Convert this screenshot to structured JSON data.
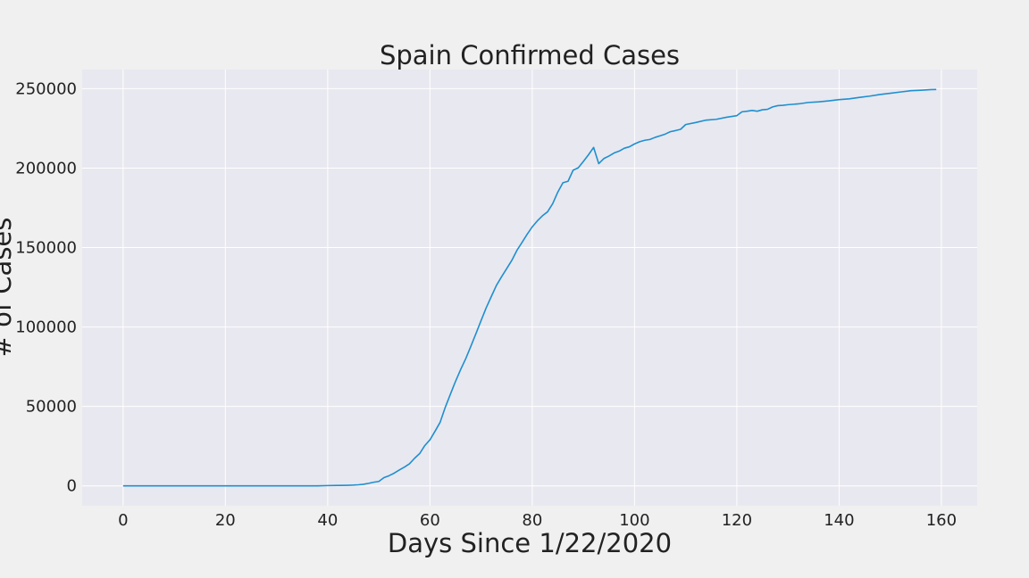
{
  "chart_data": {
    "type": "line",
    "title": "Spain Confirmed Cases",
    "xlabel": "Days Since 1/22/2020",
    "ylabel": "# of Cases",
    "xlim": [
      -8,
      167
    ],
    "ylim": [
      -12500,
      262000
    ],
    "x_ticks": [
      0,
      20,
      40,
      60,
      80,
      100,
      120,
      140,
      160
    ],
    "y_ticks": [
      0,
      50000,
      100000,
      150000,
      200000,
      250000
    ],
    "grid": true,
    "line_color": "#1f8fcf",
    "background": "#e8e8f0",
    "series": [
      {
        "x": [
          0,
          10,
          20,
          30,
          38,
          40,
          42,
          44,
          45,
          46,
          47,
          48,
          49,
          50,
          51,
          52,
          53,
          54,
          55,
          56,
          57,
          58,
          59,
          60,
          61,
          62,
          63,
          64,
          65,
          66,
          67,
          68,
          69,
          70,
          71,
          72,
          73,
          74,
          75,
          76,
          77,
          78,
          79,
          80,
          81,
          82,
          83,
          84,
          85,
          86,
          87,
          88,
          89,
          90,
          91,
          92,
          93,
          94,
          95,
          96,
          97,
          98,
          99,
          100,
          101,
          102,
          103,
          104,
          105,
          106,
          107,
          108,
          109,
          110,
          112,
          114,
          116,
          118,
          120,
          121,
          122,
          123,
          124,
          125,
          126,
          127,
          128,
          129,
          130,
          132,
          134,
          136,
          138,
          140,
          142,
          144,
          146,
          148,
          150,
          152,
          154,
          156,
          158,
          159
        ],
        "y": [
          0,
          0,
          0,
          0,
          0,
          200,
          300,
          400,
          500,
          700,
          1000,
          1600,
          2300,
          2800,
          5200,
          6400,
          8000,
          10000,
          11800,
          13900,
          17400,
          20400,
          25400,
          29000,
          34400,
          40100,
          49500,
          57700,
          65800,
          73200,
          80100,
          87900,
          95900,
          104100,
          112100,
          119200,
          126200,
          131600,
          136700,
          141900,
          148200,
          153200,
          158300,
          163000,
          166800,
          170000,
          172500,
          177600,
          184900,
          190800,
          191700,
          198700,
          200200,
          204200,
          208400,
          213000,
          202800,
          206000,
          207600,
          209500,
          210700,
          212500,
          213400,
          215200,
          216600,
          217500,
          218000,
          219300,
          220300,
          221400,
          222900,
          223600,
          224400,
          227400,
          228700,
          230200,
          230700,
          232000,
          233000,
          235400,
          235800,
          236300,
          235800,
          236700,
          237000,
          238500,
          239300,
          239500,
          239900,
          240400,
          241300,
          241700,
          242300,
          243100,
          243600,
          244500,
          245300,
          246300,
          247100,
          247900,
          248700,
          249000,
          249400,
          249500
        ]
      }
    ]
  }
}
